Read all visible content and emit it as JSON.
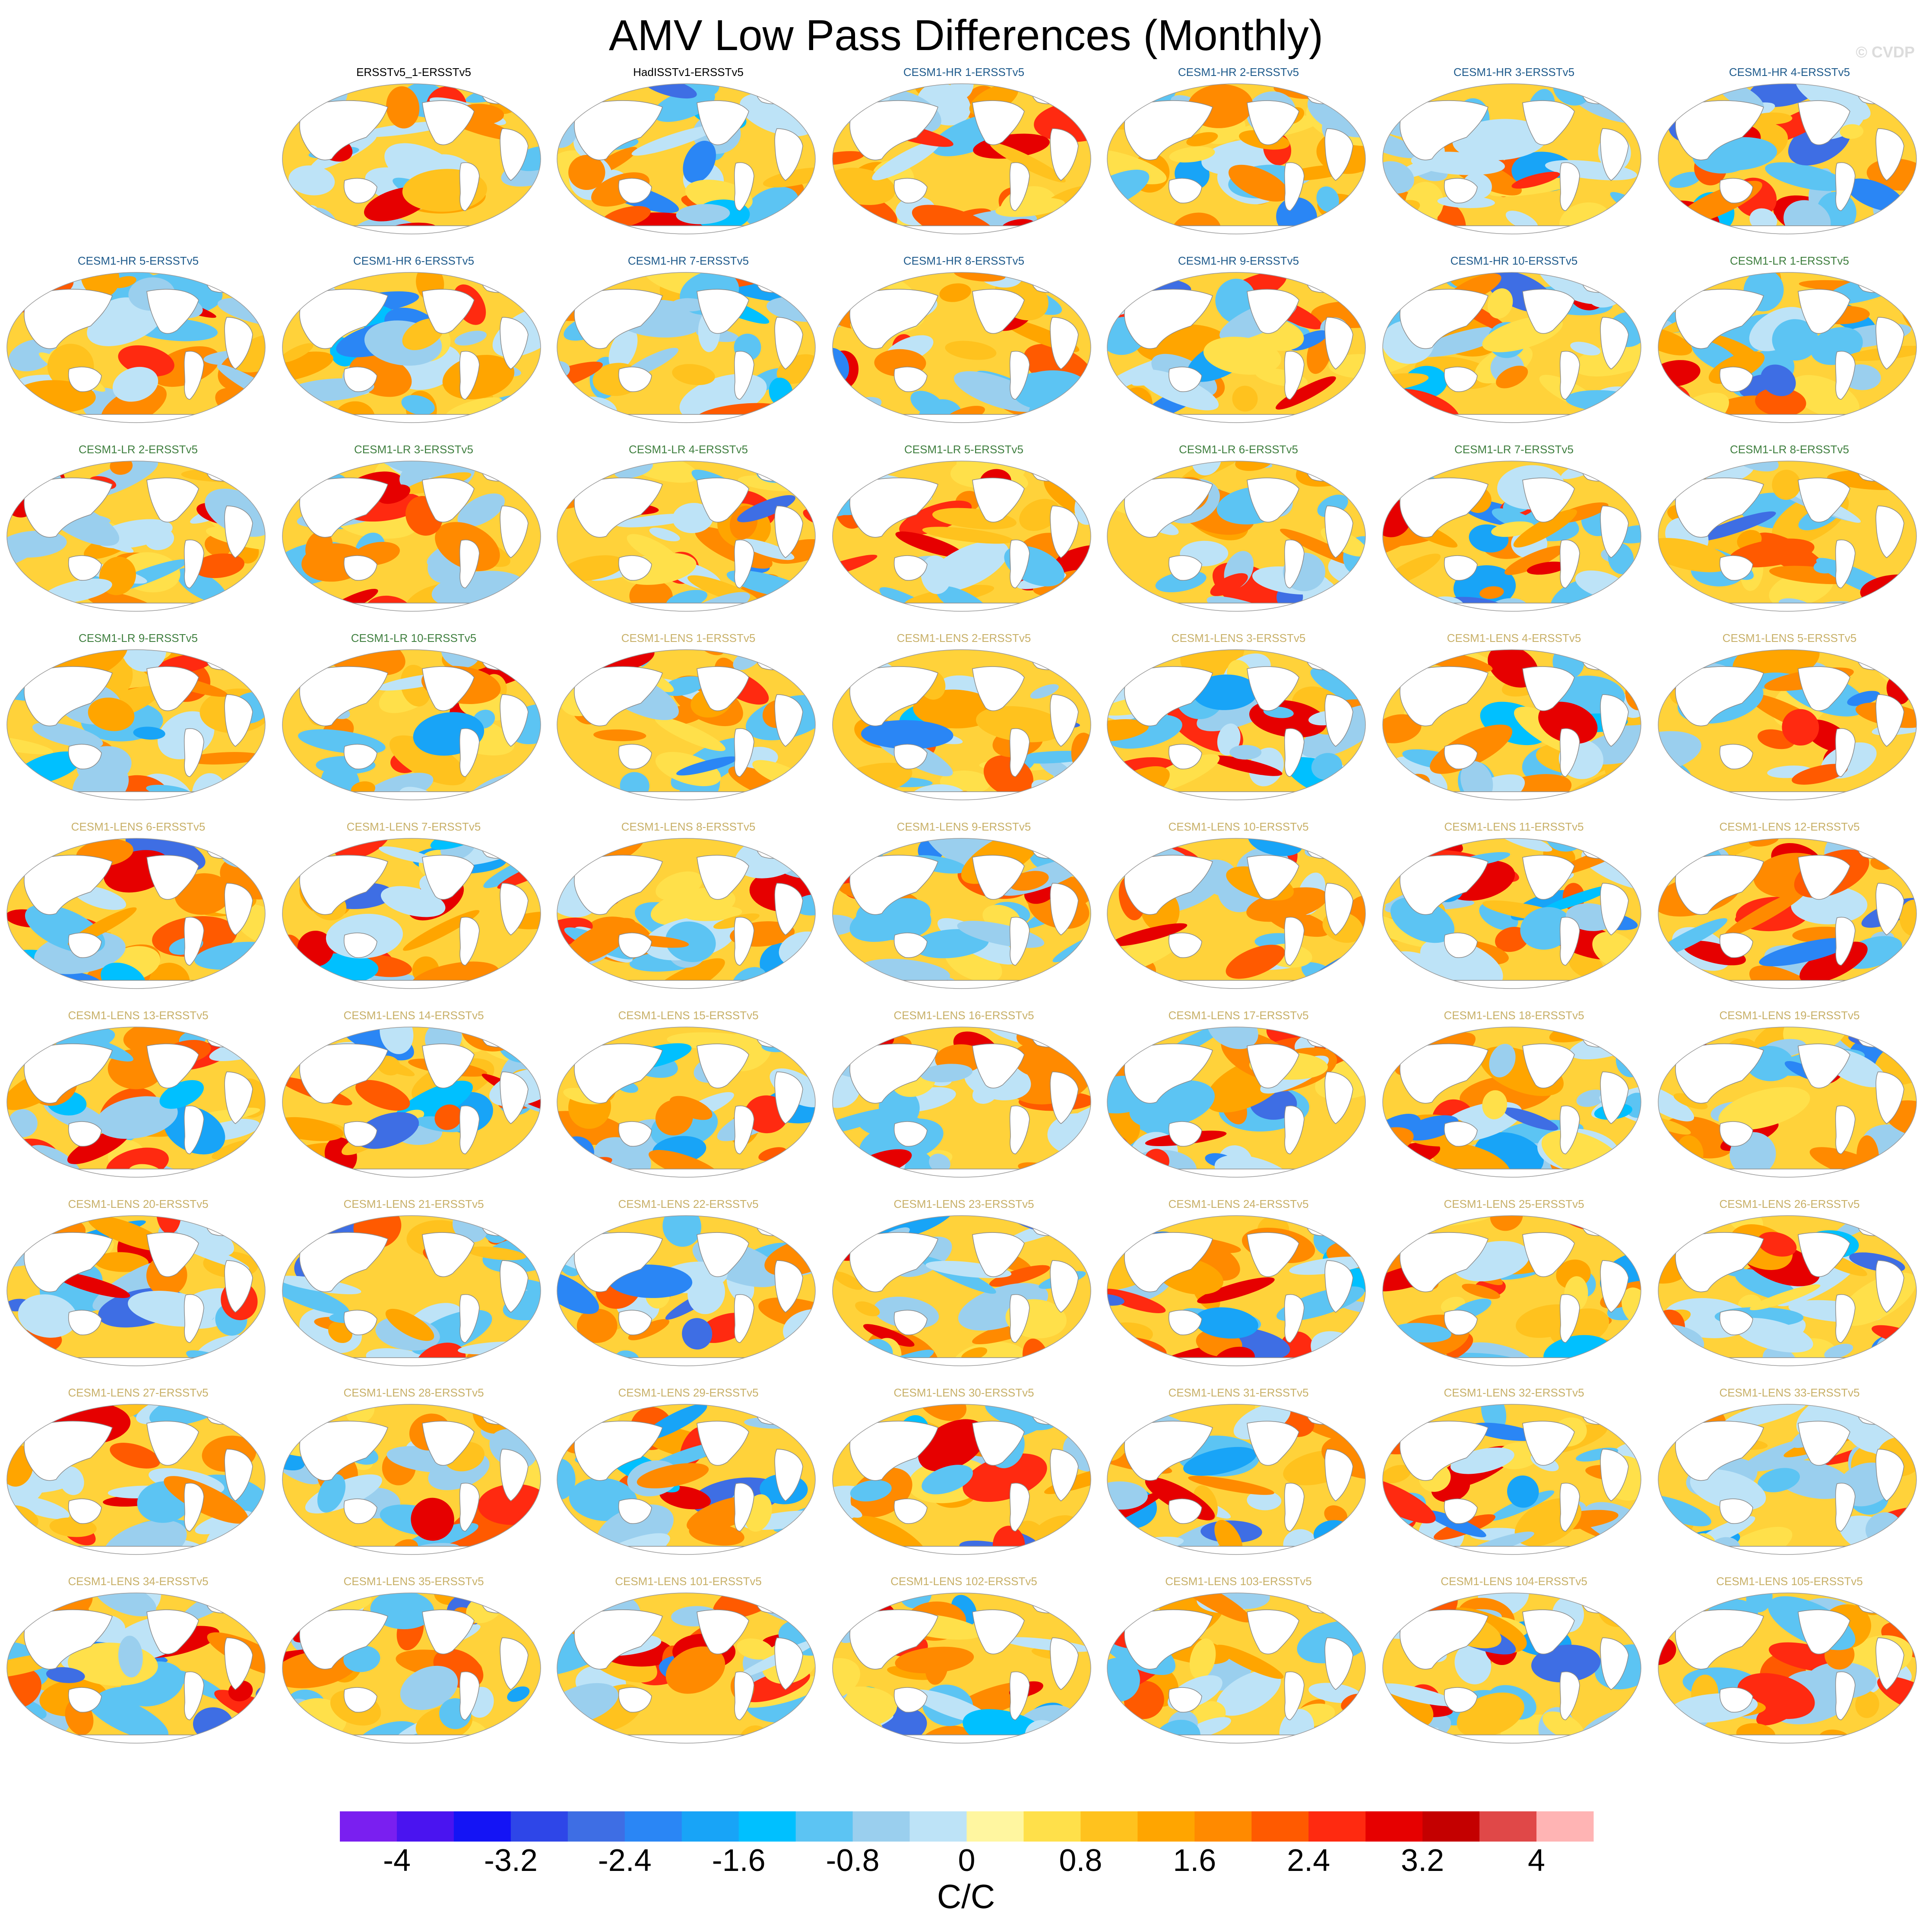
{
  "title": "AMV Low Pass Differences (Monthly)",
  "watermark": "© CVDP",
  "chart_data": {
    "type": "heatmap",
    "projection": "Robinson (global, centered on Pacific)",
    "layout": "9 rows x 7 columns; first cell of row 1 is empty",
    "title": "AMV Low Pass Differences (Monthly)",
    "colorbar": {
      "units": "C/C",
      "min": -4.4,
      "max": 4.4,
      "interval": 0.4,
      "tick_values": [
        -4,
        -3.2,
        -2.4,
        -1.6,
        -0.8,
        0,
        0.8,
        1.6,
        2.4,
        3.2,
        4
      ],
      "tick_labels": [
        "-4",
        "-3.2",
        "-2.4",
        "-1.6",
        "-0.8",
        "0",
        "0.8",
        "1.6",
        "2.4",
        "3.2",
        "4"
      ],
      "colors": [
        "#7a1ff0",
        "#4a14f0",
        "#1414f5",
        "#2e46e8",
        "#3e6ee4",
        "#2a86f5",
        "#18a4f7",
        "#00c0ff",
        "#5cc4f3",
        "#9acfee",
        "#bde3f7",
        "#fff6a0",
        "#ffe04a",
        "#ffc21e",
        "#ffa500",
        "#ff8a00",
        "#ff5a00",
        "#ff2a10",
        "#e60000",
        "#c40000",
        "#e04848",
        "#ffb4b4"
      ]
    },
    "panels": [
      {
        "label": "ERSSTv5_1-ERSSTv5",
        "group": "obs"
      },
      {
        "label": "HadISSTv1-ERSSTv5",
        "group": "obs"
      },
      {
        "label": "CESM1-HR 1-ERSSTv5",
        "group": "hr"
      },
      {
        "label": "CESM1-HR 2-ERSSTv5",
        "group": "hr"
      },
      {
        "label": "CESM1-HR 3-ERSSTv5",
        "group": "hr"
      },
      {
        "label": "CESM1-HR 4-ERSSTv5",
        "group": "hr"
      },
      {
        "label": "CESM1-HR 5-ERSSTv5",
        "group": "hr"
      },
      {
        "label": "CESM1-HR 6-ERSSTv5",
        "group": "hr"
      },
      {
        "label": "CESM1-HR 7-ERSSTv5",
        "group": "hr"
      },
      {
        "label": "CESM1-HR 8-ERSSTv5",
        "group": "hr"
      },
      {
        "label": "CESM1-HR 9-ERSSTv5",
        "group": "hr"
      },
      {
        "label": "CESM1-HR 10-ERSSTv5",
        "group": "hr"
      },
      {
        "label": "CESM1-LR 1-ERSSTv5",
        "group": "lr"
      },
      {
        "label": "CESM1-LR 2-ERSSTv5",
        "group": "lr"
      },
      {
        "label": "CESM1-LR 3-ERSSTv5",
        "group": "lr"
      },
      {
        "label": "CESM1-LR 4-ERSSTv5",
        "group": "lr"
      },
      {
        "label": "CESM1-LR 5-ERSSTv5",
        "group": "lr"
      },
      {
        "label": "CESM1-LR 6-ERSSTv5",
        "group": "lr"
      },
      {
        "label": "CESM1-LR 7-ERSSTv5",
        "group": "lr"
      },
      {
        "label": "CESM1-LR 8-ERSSTv5",
        "group": "lr"
      },
      {
        "label": "CESM1-LR 9-ERSSTv5",
        "group": "lr"
      },
      {
        "label": "CESM1-LR 10-ERSSTv5",
        "group": "lr"
      },
      {
        "label": "CESM1-LENS 1-ERSSTv5",
        "group": "lens"
      },
      {
        "label": "CESM1-LENS 2-ERSSTv5",
        "group": "lens"
      },
      {
        "label": "CESM1-LENS 3-ERSSTv5",
        "group": "lens"
      },
      {
        "label": "CESM1-LENS 4-ERSSTv5",
        "group": "lens"
      },
      {
        "label": "CESM1-LENS 5-ERSSTv5",
        "group": "lens"
      },
      {
        "label": "CESM1-LENS 6-ERSSTv5",
        "group": "lens"
      },
      {
        "label": "CESM1-LENS 7-ERSSTv5",
        "group": "lens"
      },
      {
        "label": "CESM1-LENS 8-ERSSTv5",
        "group": "lens"
      },
      {
        "label": "CESM1-LENS 9-ERSSTv5",
        "group": "lens"
      },
      {
        "label": "CESM1-LENS 10-ERSSTv5",
        "group": "lens"
      },
      {
        "label": "CESM1-LENS 11-ERSSTv5",
        "group": "lens"
      },
      {
        "label": "CESM1-LENS 12-ERSSTv5",
        "group": "lens"
      },
      {
        "label": "CESM1-LENS 13-ERSSTv5",
        "group": "lens"
      },
      {
        "label": "CESM1-LENS 14-ERSSTv5",
        "group": "lens"
      },
      {
        "label": "CESM1-LENS 15-ERSSTv5",
        "group": "lens"
      },
      {
        "label": "CESM1-LENS 16-ERSSTv5",
        "group": "lens"
      },
      {
        "label": "CESM1-LENS 17-ERSSTv5",
        "group": "lens"
      },
      {
        "label": "CESM1-LENS 18-ERSSTv5",
        "group": "lens"
      },
      {
        "label": "CESM1-LENS 19-ERSSTv5",
        "group": "lens"
      },
      {
        "label": "CESM1-LENS 20-ERSSTv5",
        "group": "lens"
      },
      {
        "label": "CESM1-LENS 21-ERSSTv5",
        "group": "lens"
      },
      {
        "label": "CESM1-LENS 22-ERSSTv5",
        "group": "lens"
      },
      {
        "label": "CESM1-LENS 23-ERSSTv5",
        "group": "lens"
      },
      {
        "label": "CESM1-LENS 24-ERSSTv5",
        "group": "lens"
      },
      {
        "label": "CESM1-LENS 25-ERSSTv5",
        "group": "lens"
      },
      {
        "label": "CESM1-LENS 26-ERSSTv5",
        "group": "lens"
      },
      {
        "label": "CESM1-LENS 27-ERSSTv5",
        "group": "lens"
      },
      {
        "label": "CESM1-LENS 28-ERSSTv5",
        "group": "lens"
      },
      {
        "label": "CESM1-LENS 29-ERSSTv5",
        "group": "lens"
      },
      {
        "label": "CESM1-LENS 30-ERSSTv5",
        "group": "lens"
      },
      {
        "label": "CESM1-LENS 31-ERSSTv5",
        "group": "lens"
      },
      {
        "label": "CESM1-LENS 32-ERSSTv5",
        "group": "lens"
      },
      {
        "label": "CESM1-LENS 33-ERSSTv5",
        "group": "lens"
      },
      {
        "label": "CESM1-LENS 34-ERSSTv5",
        "group": "lens"
      },
      {
        "label": "CESM1-LENS 35-ERSSTv5",
        "group": "lens"
      },
      {
        "label": "CESM1-LENS 101-ERSSTv5",
        "group": "lens"
      },
      {
        "label": "CESM1-LENS 102-ERSSTv5",
        "group": "lens"
      },
      {
        "label": "CESM1-LENS 103-ERSSTv5",
        "group": "lens"
      },
      {
        "label": "CESM1-LENS 104-ERSSTv5",
        "group": "lens"
      },
      {
        "label": "CESM1-LENS 105-ERSSTv5",
        "group": "lens"
      }
    ],
    "group_label_colors": {
      "obs": "#000000",
      "hr": "#1f5b8c",
      "lr": "#3f7f3f",
      "lens": "#c8b068"
    }
  }
}
